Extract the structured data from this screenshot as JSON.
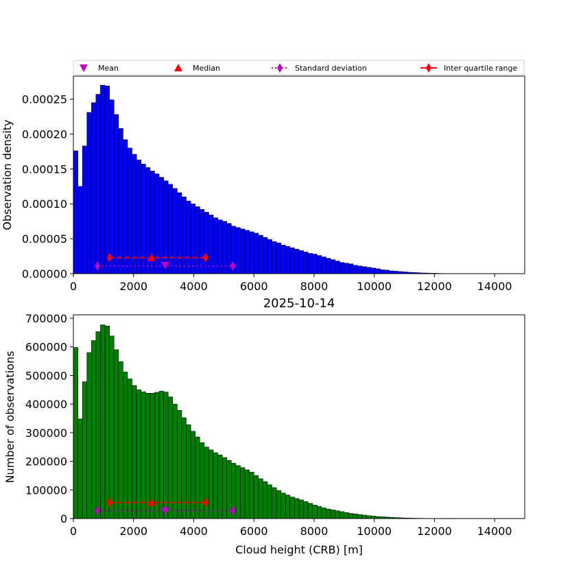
{
  "figure": {
    "title": "2025-10-14",
    "legend": [
      {
        "label": "Mean",
        "marker": "triangle-down",
        "color": "#c000c0",
        "line": "none"
      },
      {
        "label": "Median",
        "marker": "triangle-up",
        "color": "#ff0000",
        "line": "none"
      },
      {
        "label": "Standard deviation",
        "marker": "diamond",
        "color": "#c000c0",
        "line": "dotted"
      },
      {
        "label": "Inter quartile range",
        "marker": "diamond",
        "color": "#ff0000",
        "line": "solid"
      }
    ]
  },
  "chart_data": [
    {
      "type": "bar",
      "name": "density",
      "xlabel": "",
      "ylabel": "Observation density",
      "xlim": [
        0,
        15000
      ],
      "ylim": [
        0,
        0.000283
      ],
      "xticks": [
        0,
        2000,
        4000,
        6000,
        8000,
        10000,
        12000,
        14000
      ],
      "yticks": [
        0,
        5e-05,
        0.0001,
        0.00015,
        0.0002,
        0.00025
      ],
      "ytick_labels": [
        "0.00000",
        "0.00005",
        "0.00010",
        "0.00015",
        "0.00020",
        "0.00025"
      ],
      "bin_width": 150,
      "bar_color": "#0000ff",
      "edge_color": "#000000",
      "values": [
        0.000176,
        0.000125,
        0.000183,
        0.000231,
        0.000245,
        0.000257,
        0.00027,
        0.000269,
        0.000249,
        0.000228,
        0.000208,
        0.000192,
        0.00018,
        0.000171,
        0.000163,
        0.000157,
        0.000152,
        0.000147,
        0.000143,
        0.000138,
        0.000133,
        0.000128,
        0.000122,
        0.000116,
        0.00011,
        0.000104,
        0.0001,
        9.6e-05,
        9.2e-05,
        8.8e-05,
        8.4e-05,
        8e-05,
        7.7e-05,
        7.5e-05,
        7.2e-05,
        6.8e-05,
        6.6e-05,
        6.4e-05,
        6.2e-05,
        6e-05,
        5.8e-05,
        5.5e-05,
        5.2e-05,
        4.9e-05,
        4.6e-05,
        4.4e-05,
        4.1e-05,
        3.9e-05,
        3.7e-05,
        3.5e-05,
        3.3e-05,
        3.1e-05,
        2.9e-05,
        2.8e-05,
        2.6e-05,
        2.4e-05,
        2.2e-05,
        2e-05,
        1.8e-05,
        1.6e-05,
        1.5e-05,
        1.4e-05,
        1.2e-05,
        1.1e-05,
        1e-05,
        9e-06,
        8e-06,
        7e-06,
        5.5e-06,
        5e-06,
        4e-06,
        3.5e-06,
        3e-06,
        2.5e-06,
        2e-06,
        1.7e-06,
        1.3e-06,
        1e-06,
        8e-07,
        6e-07,
        5e-07,
        3e-07,
        2e-07,
        1e-07,
        1e-07,
        0,
        0,
        0,
        0,
        0,
        0,
        0,
        0,
        0,
        0,
        0,
        0,
        0,
        0,
        0
      ],
      "stats": {
        "mean": 3050,
        "median": 2600,
        "std_range": [
          800,
          5300
        ],
        "iqr": [
          1200,
          4400
        ]
      },
      "stats_y": {
        "mean": 1.2e-05,
        "median": 2.3e-05,
        "std": 1.1e-05,
        "iqr": 2.3e-05
      }
    },
    {
      "type": "bar",
      "name": "count",
      "xlabel": "Cloud height (CRB) [m]",
      "ylabel": "Number of observations",
      "xlim": [
        0,
        15000
      ],
      "ylim": [
        0,
        712000
      ],
      "xticks": [
        0,
        2000,
        4000,
        6000,
        8000,
        10000,
        12000,
        14000
      ],
      "yticks": [
        0,
        100000,
        200000,
        300000,
        400000,
        500000,
        600000,
        700000
      ],
      "ytick_labels": [
        "0",
        "100000",
        "200000",
        "300000",
        "400000",
        "500000",
        "600000",
        "700000"
      ],
      "bin_width": 150,
      "bar_color": "#008000",
      "edge_color": "#000000",
      "values": [
        598000,
        348000,
        478000,
        580000,
        622000,
        653000,
        677000,
        673000,
        638000,
        590000,
        548000,
        512000,
        488000,
        465000,
        450000,
        443000,
        438000,
        438000,
        441000,
        445000,
        442000,
        425000,
        400000,
        378000,
        352000,
        328000,
        305000,
        285000,
        265000,
        250000,
        240000,
        230000,
        222000,
        213000,
        203000,
        193000,
        185000,
        178000,
        170000,
        162000,
        150000,
        139000,
        129000,
        118000,
        108000,
        98000,
        89000,
        82000,
        75000,
        70000,
        65000,
        59000,
        53000,
        47000,
        42000,
        37000,
        33000,
        30000,
        27000,
        24000,
        21000,
        18000,
        16000,
        14000,
        12000,
        10000,
        8500,
        7000,
        6000,
        5000,
        4000,
        3200,
        2600,
        2000,
        1500,
        1200,
        900,
        700,
        500,
        350,
        250,
        150,
        100,
        50,
        30,
        0,
        0,
        0,
        0,
        0,
        0,
        0,
        0,
        0,
        0,
        0,
        0,
        0,
        0,
        0
      ],
      "stats": {
        "mean": 3050,
        "median": 2600,
        "std_range": [
          800,
          5300
        ],
        "iqr": [
          1200,
          4400
        ]
      },
      "stats_y": {
        "mean": 28000,
        "median": 56000,
        "std": 28000,
        "iqr": 56000
      }
    }
  ]
}
